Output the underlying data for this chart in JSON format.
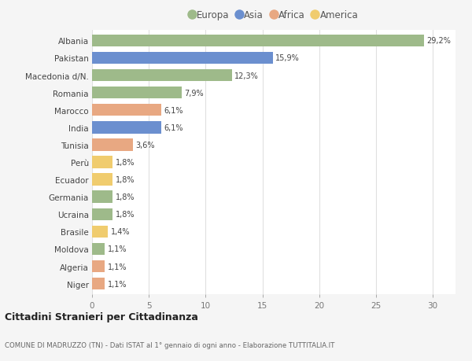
{
  "countries": [
    "Albania",
    "Pakistan",
    "Macedonia d/N.",
    "Romania",
    "Marocco",
    "India",
    "Tunisia",
    "Perù",
    "Ecuador",
    "Germania",
    "Ucraina",
    "Brasile",
    "Moldova",
    "Algeria",
    "Niger"
  ],
  "values": [
    29.2,
    15.9,
    12.3,
    7.9,
    6.1,
    6.1,
    3.6,
    1.8,
    1.8,
    1.8,
    1.8,
    1.4,
    1.1,
    1.1,
    1.1
  ],
  "labels": [
    "29,2%",
    "15,9%",
    "12,3%",
    "7,9%",
    "6,1%",
    "6,1%",
    "3,6%",
    "1,8%",
    "1,8%",
    "1,8%",
    "1,8%",
    "1,4%",
    "1,1%",
    "1,1%",
    "1,1%"
  ],
  "continents": [
    "Europa",
    "Asia",
    "Europa",
    "Europa",
    "Africa",
    "Asia",
    "Africa",
    "America",
    "America",
    "Europa",
    "Europa",
    "America",
    "Europa",
    "Africa",
    "Africa"
  ],
  "continent_colors": {
    "Europa": "#9eba8a",
    "Asia": "#6b8fcf",
    "Africa": "#e8a882",
    "America": "#f0cc6e"
  },
  "legend_items": [
    "Europa",
    "Asia",
    "Africa",
    "America"
  ],
  "title": "Cittadini Stranieri per Cittadinanza",
  "subtitle": "COMUNE DI MADRUZZO (TN) - Dati ISTAT al 1° gennaio di ogni anno - Elaborazione TUTTITALIA.IT",
  "xlim": [
    0,
    32
  ],
  "xticks": [
    0,
    5,
    10,
    15,
    20,
    25,
    30
  ],
  "background_color": "#f5f5f5",
  "bar_background": "#ffffff",
  "grid_color": "#e0e0e0"
}
